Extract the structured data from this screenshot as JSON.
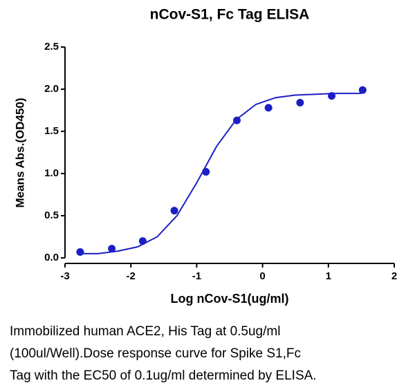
{
  "chart_data": {
    "type": "scatter",
    "title": "nCov-S1, Fc Tag ELISA",
    "x_label": "Log nCov-S1(ug/ml)",
    "y_label": "Means Abs.(OD450)",
    "x": [
      -2.77,
      -2.29,
      -1.82,
      -1.34,
      -0.86,
      -0.39,
      0.09,
      0.57,
      1.05,
      1.52
    ],
    "values": [
      0.07,
      0.11,
      0.2,
      0.56,
      1.02,
      1.63,
      1.78,
      1.84,
      1.92,
      1.99
    ],
    "color": "#1c1fc4",
    "fit": {
      "type": "line",
      "color": "#1c1fc4",
      "x": [
        -2.8,
        -2.5,
        -2.2,
        -1.9,
        -1.6,
        -1.3,
        -1.0,
        -0.7,
        -0.4,
        -0.1,
        0.2,
        0.5,
        0.8,
        1.1,
        1.5
      ],
      "values": [
        0.05,
        0.05,
        0.08,
        0.13,
        0.25,
        0.5,
        0.89,
        1.32,
        1.64,
        1.82,
        1.9,
        1.93,
        1.94,
        1.95,
        1.95
      ]
    },
    "xlim": [
      -3,
      2
    ],
    "xticks": [
      -3,
      -2,
      -1,
      0,
      1,
      2
    ],
    "ylim": [
      0,
      2.5
    ],
    "yticks": [
      {
        "value": 0,
        "label": "0.0"
      },
      0.5,
      {
        "value": 1,
        "label": "1.0"
      },
      1.5,
      {
        "value": 2,
        "label": "2.0"
      },
      2.5
    ],
    "grid": false
  },
  "caption": [
    "Immobilized human ACE2, His Tag at 0.5ug/ml",
    "(100ul/Well).Dose response curve for Spike S1,Fc",
    "Tag with the EC50 of 0.1ug/ml determined by ELISA."
  ]
}
